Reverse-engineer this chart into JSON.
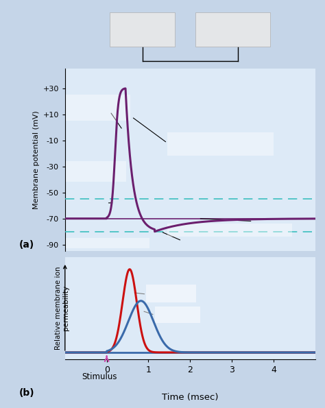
{
  "bg_color": "#ddeaf7",
  "outer_bg": "#c5d5e8",
  "panel_a_ylim": [
    -95,
    45
  ],
  "panel_a_yticks": [
    -90,
    -70,
    -50,
    -30,
    -10,
    10,
    30
  ],
  "panel_a_yticklabels": [
    "-90",
    "-70",
    "-50",
    "-30",
    "-10",
    "+10",
    "+30"
  ],
  "panel_b_ylim": [
    -0.08,
    1.15
  ],
  "xlim": [
    -1,
    5
  ],
  "xticks": [
    0,
    1,
    2,
    3,
    4
  ],
  "action_potential_color": "#6b1f6e",
  "resting_potential": -70,
  "threshold": -55,
  "undershoot": -80,
  "dashed_line_color": "#3bbfbf",
  "na_color": "#cc1111",
  "k_color": "#3a6aaa",
  "stimulus_color": "#cc44aa",
  "xlabel": "Time (msec)",
  "ylabel_a": "Membrane potential (mV)",
  "ylabel_b": "Relative membrane ion\npermeability",
  "stimulus_label": "Stimulus",
  "panel_a_label": "(a)",
  "panel_b_label": "(b)"
}
